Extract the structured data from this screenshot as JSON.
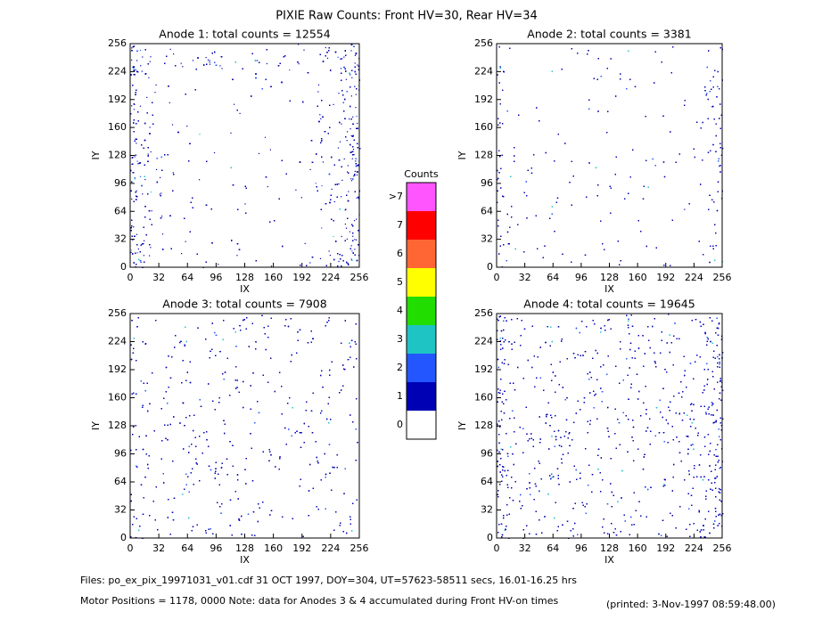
{
  "title": "PIXIE Raw Counts:  Front HV=30, Rear HV=34",
  "notes": [
    "Files: po_ex_pix_19971031_v01.cdf    31 OCT 1997, DOY=304, UT=57623-58511 secs, 16.01-16.25 hrs",
    "Motor Positions = 1178, 0000    Note: data for Anodes 3 & 4 accumulated during Front HV-on times",
    "(printed:  3-Nov-1997 08:59:48.00)"
  ],
  "chart_data": [
    {
      "type": "heatmap",
      "title": "Anode 1: total counts = 12554",
      "xlabel": "IX",
      "ylabel": "IY",
      "xlim": [
        0,
        256
      ],
      "ylim": [
        0,
        256
      ],
      "xticks": [
        0,
        32,
        64,
        96,
        128,
        160,
        192,
        224,
        256
      ],
      "yticks": [
        0,
        32,
        64,
        96,
        128,
        160,
        192,
        224,
        256
      ]
    },
    {
      "type": "heatmap",
      "title": "Anode 2: total counts = 3381",
      "xlabel": "IX",
      "ylabel": "IY",
      "xlim": [
        0,
        256
      ],
      "ylim": [
        0,
        256
      ],
      "xticks": [
        0,
        32,
        64,
        96,
        128,
        160,
        192,
        224,
        256
      ],
      "yticks": [
        0,
        32,
        64,
        96,
        128,
        160,
        192,
        224,
        256
      ]
    },
    {
      "type": "heatmap",
      "title": "Anode 3: total counts = 7908",
      "xlabel": "IX",
      "ylabel": "IY",
      "xlim": [
        0,
        256
      ],
      "ylim": [
        0,
        256
      ],
      "xticks": [
        0,
        32,
        64,
        96,
        128,
        160,
        192,
        224,
        256
      ],
      "yticks": [
        0,
        32,
        64,
        96,
        128,
        160,
        192,
        224,
        256
      ]
    },
    {
      "type": "heatmap",
      "title": "Anode 4: total counts = 19645",
      "xlabel": "IX",
      "ylabel": "IY",
      "xlim": [
        0,
        256
      ],
      "ylim": [
        0,
        256
      ],
      "xticks": [
        0,
        32,
        64,
        96,
        128,
        160,
        192,
        224,
        256
      ],
      "yticks": [
        0,
        32,
        64,
        96,
        128,
        160,
        192,
        224,
        256
      ]
    },
    {
      "type": "colorbar",
      "title": "Counts",
      "categories": [
        "0",
        "1",
        "2",
        "3",
        "4",
        "5",
        "6",
        "7",
        ">7"
      ],
      "colors": [
        "#ffffff",
        "#0000b4",
        "#2456ff",
        "#1ec4c4",
        "#22dd00",
        "#ffff00",
        "#ff6633",
        "#ff0000",
        "#ff55ff"
      ]
    }
  ]
}
